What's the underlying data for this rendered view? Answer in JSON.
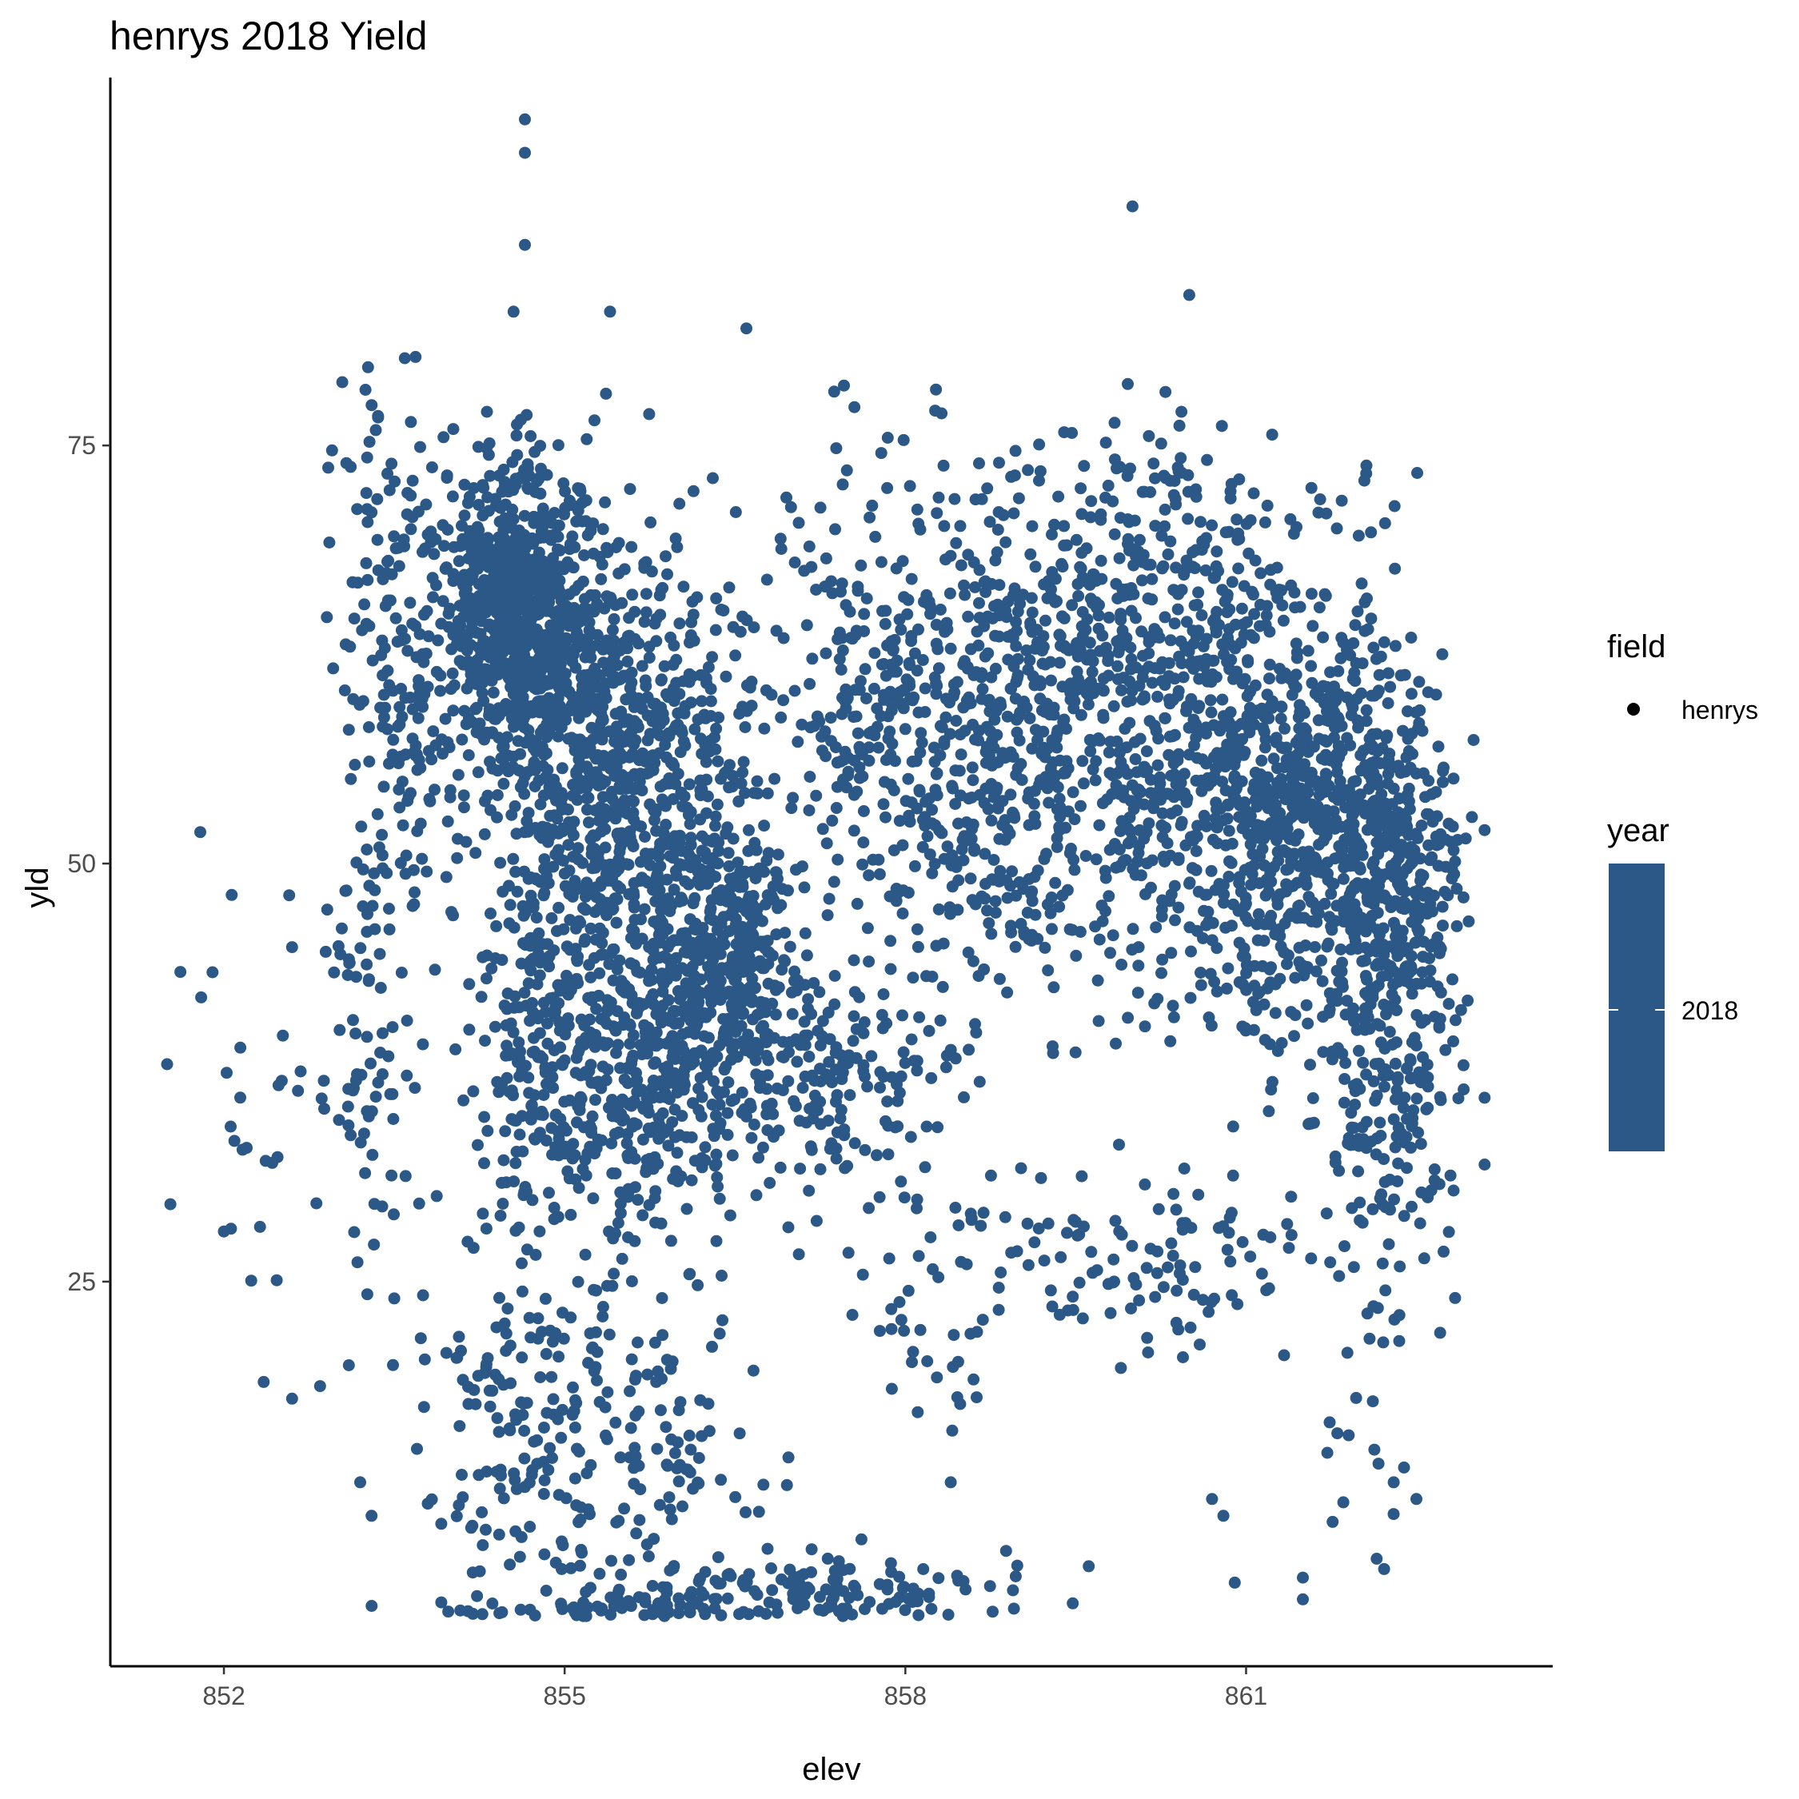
{
  "chart_data": {
    "type": "scatter",
    "title": "henrys 2018 Yield",
    "xlabel": "elev",
    "ylabel": "yld",
    "xlim": [
      851.0,
      863.7
    ],
    "ylim": [
      2.0,
      97.0
    ],
    "x_ticks": [
      852,
      855,
      858,
      861
    ],
    "y_ticks": [
      25,
      50,
      75
    ],
    "grid": false,
    "point_color": "#2b5886",
    "legend": {
      "placement": "right",
      "field": {
        "title": "field",
        "entries": [
          "henrys"
        ]
      },
      "year": {
        "title": "year",
        "entries": [
          "2018"
        ],
        "fill": "#2b5886"
      }
    },
    "series": [
      {
        "name": "henrys",
        "clusters": [
          {
            "x": 854.55,
            "y": 65,
            "sx": 0.28,
            "sy": 4.5,
            "n": 700
          },
          {
            "x": 855.15,
            "y": 58,
            "sx": 0.35,
            "sy": 7,
            "n": 450
          },
          {
            "x": 855.9,
            "y": 53,
            "sx": 0.4,
            "sy": 8,
            "n": 450
          },
          {
            "x": 856.5,
            "y": 45,
            "sx": 0.25,
            "sy": 4,
            "n": 250
          },
          {
            "x": 855.8,
            "y": 38,
            "sx": 0.5,
            "sy": 5,
            "n": 350
          },
          {
            "x": 854.8,
            "y": 40,
            "sx": 0.35,
            "sy": 6,
            "n": 250
          },
          {
            "x": 857.3,
            "y": 38,
            "sx": 0.55,
            "sy": 3.5,
            "n": 180
          },
          {
            "x": 857.7,
            "y": 61,
            "sx": 0.45,
            "sy": 6,
            "n": 180
          },
          {
            "x": 858.7,
            "y": 56,
            "sx": 0.6,
            "sy": 8,
            "n": 420
          },
          {
            "x": 859.7,
            "y": 60,
            "sx": 0.6,
            "sy": 7,
            "n": 380
          },
          {
            "x": 860.5,
            "y": 68,
            "sx": 0.5,
            "sy": 4.5,
            "n": 150
          },
          {
            "x": 860.8,
            "y": 53,
            "sx": 0.45,
            "sy": 6,
            "n": 350
          },
          {
            "x": 861.6,
            "y": 53,
            "sx": 0.45,
            "sy": 7,
            "n": 500
          },
          {
            "x": 862.3,
            "y": 49,
            "sx": 0.3,
            "sy": 6,
            "n": 380
          },
          {
            "x": 862.3,
            "y": 35,
            "sx": 0.35,
            "sy": 6,
            "n": 150
          },
          {
            "x": 853.6,
            "y": 62,
            "sx": 0.3,
            "sy": 8,
            "n": 200
          },
          {
            "x": 853.3,
            "y": 41,
            "sx": 0.2,
            "sy": 8,
            "n": 80
          },
          {
            "x": 852.6,
            "y": 36,
            "sx": 0.45,
            "sy": 7,
            "n": 30
          },
          {
            "x": 854.6,
            "y": 17,
            "sx": 0.4,
            "sy": 5,
            "n": 150
          },
          {
            "x": 855.7,
            "y": 15,
            "sx": 0.45,
            "sy": 6,
            "n": 130
          },
          {
            "x": 857.0,
            "y": 6,
            "sx": 1.0,
            "sy": 1.3,
            "n": 180
          },
          {
            "x": 855.0,
            "y": 5,
            "sx": 0.7,
            "sy": 0.8,
            "n": 100
          },
          {
            "x": 859.5,
            "y": 27,
            "sx": 1.1,
            "sy": 2.5,
            "n": 100
          },
          {
            "x": 858.3,
            "y": 21,
            "sx": 0.3,
            "sy": 3,
            "n": 25
          },
          {
            "x": 860.6,
            "y": 26,
            "sx": 0.3,
            "sy": 3,
            "n": 30
          },
          {
            "x": 862.0,
            "y": 14,
            "sx": 0.3,
            "sy": 6,
            "n": 20
          }
        ],
        "outliers": [
          [
            854.65,
            94.5
          ],
          [
            854.65,
            92.5
          ],
          [
            854.65,
            87.0
          ],
          [
            860.0,
            89.3
          ],
          [
            854.55,
            83.0
          ],
          [
            855.4,
            83.0
          ],
          [
            856.6,
            82.0
          ],
          [
            860.5,
            84.0
          ],
          [
            853.1,
            58.0
          ],
          [
            853.3,
            71.0
          ],
          [
            853.4,
            67.0
          ],
          [
            851.5,
            38.0
          ],
          [
            851.8,
            42.0
          ],
          [
            851.9,
            43.5
          ],
          [
            852.0,
            28.0
          ],
          [
            852.2,
            33.0
          ],
          [
            852.35,
            19.0
          ],
          [
            852.6,
            18.0
          ],
          [
            852.6,
            45.0
          ],
          [
            853.1,
            20.0
          ],
          [
            853.2,
            13.0
          ],
          [
            853.3,
            11.0
          ],
          [
            853.5,
            24.0
          ],
          [
            853.7,
            15.0
          ],
          [
            858.4,
            13.0
          ],
          [
            860.7,
            12.0
          ],
          [
            860.8,
            11.0
          ],
          [
            860.9,
            7.0
          ],
          [
            861.5,
            7.3
          ],
          [
            861.5,
            6.0
          ],
          [
            862.3,
            13.0
          ],
          [
            862.5,
            12.0
          ],
          [
            862.35,
            23.0
          ],
          [
            863.1,
            52.0
          ],
          [
            863.1,
            36.0
          ],
          [
            863.1,
            32.0
          ]
        ]
      }
    ]
  }
}
